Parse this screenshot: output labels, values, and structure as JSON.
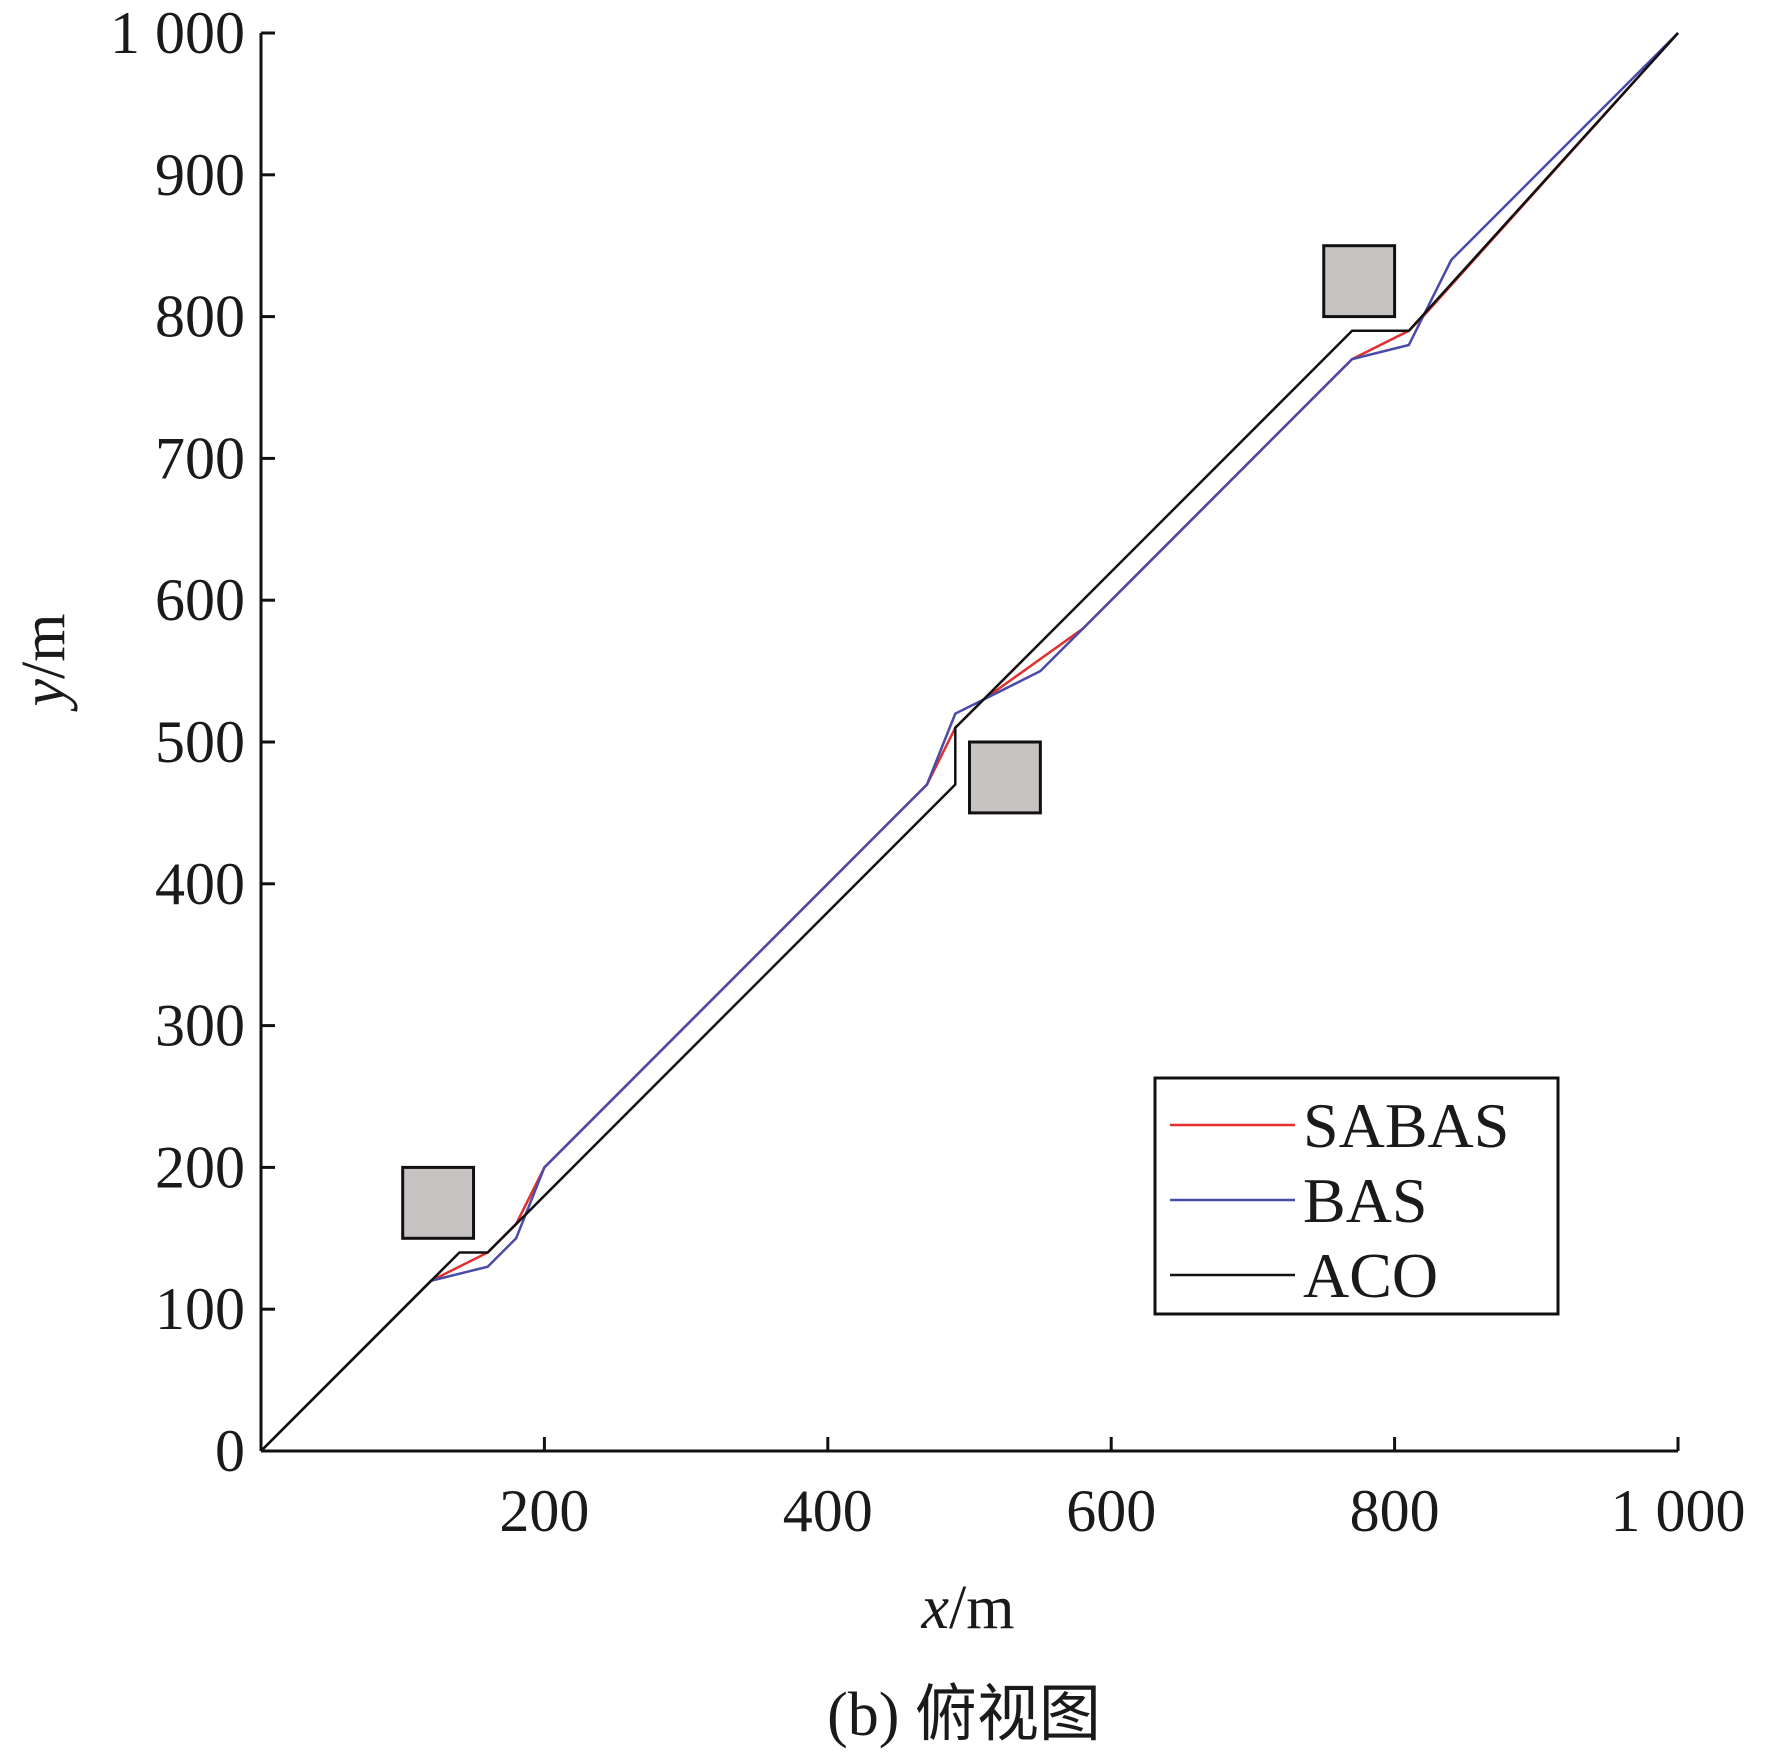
{
  "chart_data": {
    "type": "line",
    "xlabel": {
      "var": "x",
      "unit": "/m"
    },
    "ylabel": {
      "var": "y",
      "unit": "/m"
    },
    "xlim": [
      0,
      1000
    ],
    "ylim": [
      0,
      1000
    ],
    "x_ticks": [
      {
        "value": 200,
        "label": "200"
      },
      {
        "value": 400,
        "label": "400"
      },
      {
        "value": 600,
        "label": "600"
      },
      {
        "value": 800,
        "label": "800"
      },
      {
        "value": 1000,
        "label": "1 000"
      }
    ],
    "y_ticks": [
      {
        "value": 0,
        "label": "0"
      },
      {
        "value": 100,
        "label": "100"
      },
      {
        "value": 200,
        "label": "200"
      },
      {
        "value": 300,
        "label": "300"
      },
      {
        "value": 400,
        "label": "400"
      },
      {
        "value": 500,
        "label": "500"
      },
      {
        "value": 600,
        "label": "600"
      },
      {
        "value": 700,
        "label": "700"
      },
      {
        "value": 800,
        "label": "800"
      },
      {
        "value": 900,
        "label": "900"
      },
      {
        "value": 1000,
        "label": "1 000"
      }
    ],
    "grid": false,
    "legend": "lower-right",
    "series": [
      {
        "name": "SABAS",
        "color": "#e03030",
        "points": [
          [
            0,
            0
          ],
          [
            120,
            120
          ],
          [
            160,
            140
          ],
          [
            180,
            160
          ],
          [
            200,
            200
          ],
          [
            470,
            470
          ],
          [
            490,
            510
          ],
          [
            510,
            530
          ],
          [
            580,
            580
          ],
          [
            770,
            770
          ],
          [
            810,
            790
          ],
          [
            820,
            800
          ],
          [
            1000,
            1000
          ]
        ]
      },
      {
        "name": "BAS",
        "color": "#4a4aa8",
        "points": [
          [
            0,
            0
          ],
          [
            120,
            120
          ],
          [
            160,
            130
          ],
          [
            180,
            150
          ],
          [
            200,
            200
          ],
          [
            470,
            470
          ],
          [
            490,
            520
          ],
          [
            510,
            530
          ],
          [
            550,
            550
          ],
          [
            580,
            580
          ],
          [
            770,
            770
          ],
          [
            810,
            780
          ],
          [
            840,
            840
          ],
          [
            1000,
            1000
          ]
        ]
      },
      {
        "name": "ACO",
        "color": "#111111",
        "points": [
          [
            0,
            0
          ],
          [
            140,
            140
          ],
          [
            160,
            140
          ],
          [
            490,
            470
          ],
          [
            490,
            510
          ],
          [
            770,
            790
          ],
          [
            810,
            790
          ],
          [
            1000,
            1000
          ]
        ]
      }
    ],
    "obstacles": [
      {
        "x": [
          100,
          150
        ],
        "y": [
          150,
          200
        ]
      },
      {
        "x": [
          500,
          550
        ],
        "y": [
          450,
          500
        ]
      },
      {
        "x": [
          750,
          800
        ],
        "y": [
          800,
          850
        ]
      }
    ],
    "obstacle_fill": "#c8c3c3",
    "caption": "(b) 俯视图"
  }
}
